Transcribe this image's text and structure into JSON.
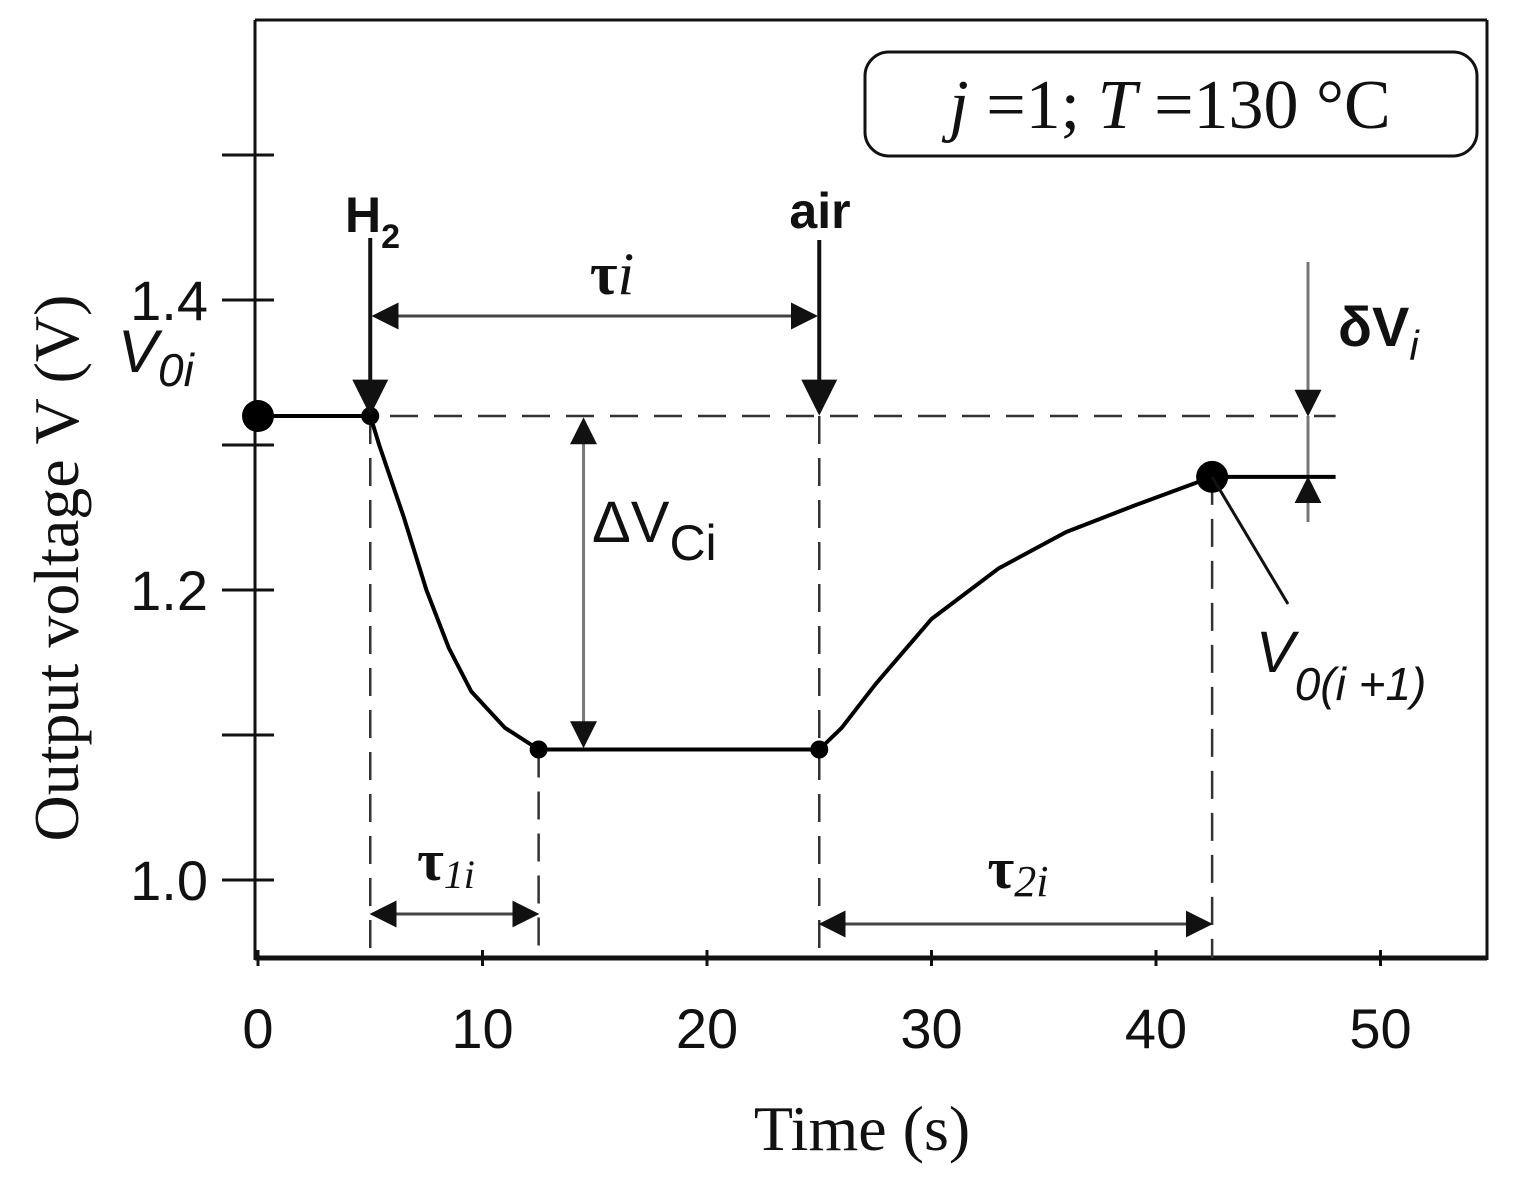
{
  "chart_data": {
    "type": "line",
    "title": "",
    "xlabel": "Time (s)",
    "ylabel": "Output voltage V (V)",
    "xlim": [
      0,
      55
    ],
    "ylim": [
      0.95,
      1.57
    ],
    "x_ticks": [
      0,
      10,
      20,
      30,
      40,
      50
    ],
    "x_tick_labels": [
      "0",
      "10",
      "20",
      "30",
      "40",
      "50"
    ],
    "y_ticks": [
      1.0,
      1.2,
      1.4
    ],
    "y_tick_labels": [
      "1.0",
      "1.2",
      "1.4"
    ],
    "y_unlabeled_ticks": [
      1.1,
      1.3,
      1.5
    ],
    "grid": false,
    "legend": "none",
    "series": [
      {
        "color": "#000000",
        "points": [
          [
            0,
            1.32
          ],
          [
            5,
            1.32
          ],
          [
            5.4,
            1.3
          ],
          [
            6.5,
            1.25
          ],
          [
            7.5,
            1.2
          ],
          [
            8.5,
            1.16
          ],
          [
            9.5,
            1.13
          ],
          [
            11,
            1.105
          ],
          [
            12.5,
            1.09
          ],
          [
            25,
            1.09
          ],
          [
            26,
            1.105
          ],
          [
            27.5,
            1.135
          ],
          [
            30,
            1.18
          ],
          [
            33,
            1.215
          ],
          [
            36,
            1.24
          ],
          [
            39,
            1.258
          ],
          [
            42.5,
            1.278
          ],
          [
            48,
            1.278
          ]
        ]
      }
    ],
    "key_points": [
      {
        "x": 0,
        "y": 1.32,
        "size": "large"
      },
      {
        "x": 5,
        "y": 1.32,
        "size": "small"
      },
      {
        "x": 12.5,
        "y": 1.09,
        "size": "small"
      },
      {
        "x": 25,
        "y": 1.09,
        "size": "small"
      },
      {
        "x": 42.5,
        "y": 1.278,
        "size": "large"
      }
    ],
    "reference_line": {
      "y": 1.32,
      "x": [
        0,
        48
      ],
      "style": "dashed"
    },
    "vertical_guides": [
      5,
      12.5,
      25,
      42.5
    ],
    "annotations": {
      "condition_box": {
        "italic_j": "j",
        "j_value": " =1; ",
        "italic_T": "T",
        "T_value": " =130 °C"
      },
      "h2_marker": {
        "label": "H",
        "subscript": "2",
        "x": 5
      },
      "air_marker": {
        "label": "air",
        "x": 25
      },
      "tau_i": {
        "symbol": "τ",
        "sub": "i",
        "x": [
          5,
          25
        ]
      },
      "tau_1i": {
        "symbol": "τ",
        "sub": "1i",
        "x": [
          5,
          12.5
        ]
      },
      "tau_2i": {
        "symbol": "τ",
        "sub": "2i",
        "x": [
          25,
          42.5
        ]
      },
      "v0i": {
        "main": "V",
        "sub": "0i"
      },
      "delta_vci": {
        "main": "ΔV",
        "sub": "Ci"
      },
      "delta_vi": {
        "main": "δV",
        "sub": "i"
      },
      "v0_next": {
        "main": "V",
        "sub": "0(i +1)"
      }
    }
  }
}
